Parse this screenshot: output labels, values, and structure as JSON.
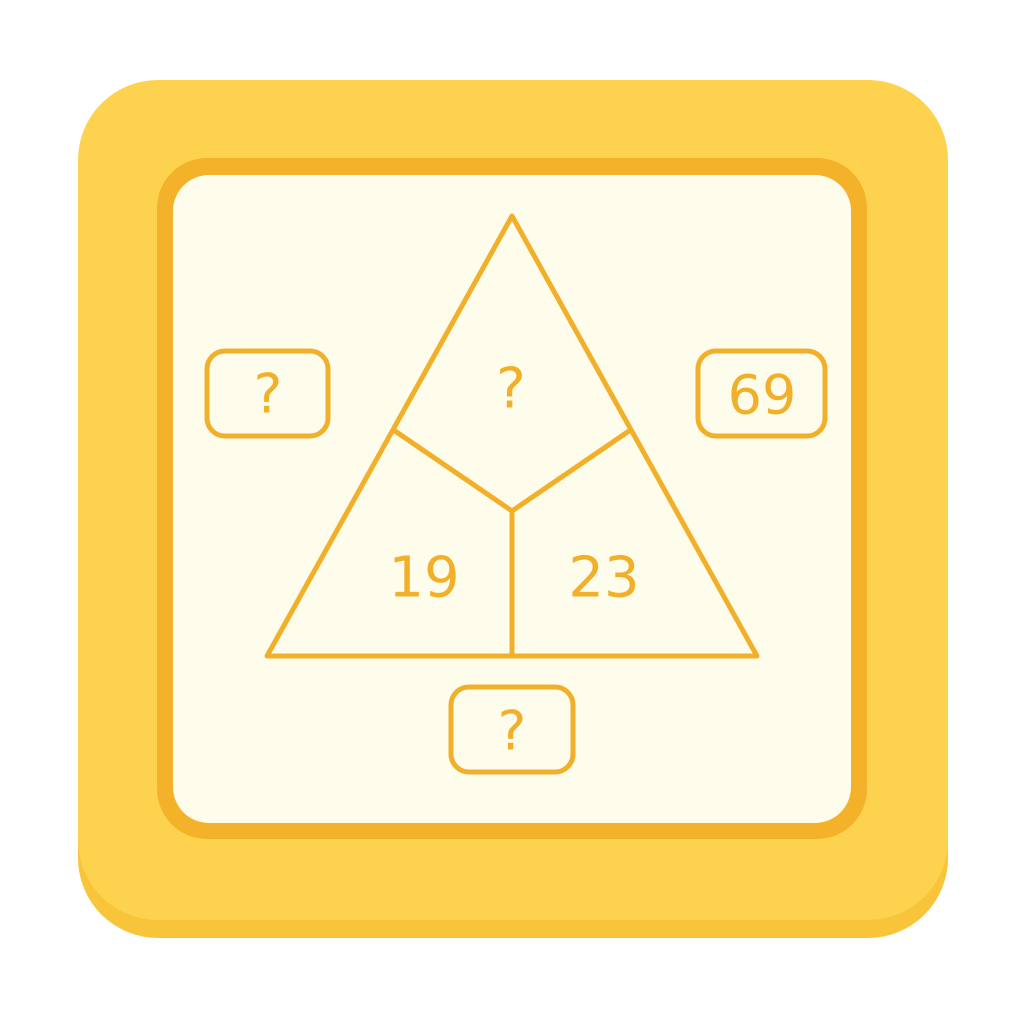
{
  "puzzle": {
    "segments": {
      "top": "?",
      "bottom_left": "19",
      "bottom_right": "23"
    },
    "outer_boxes": {
      "left": "?",
      "right": "69",
      "bottom": "?"
    }
  },
  "colors": {
    "tile": "#fdd24f",
    "tile_edge": "#f8c43a",
    "frame": "#f4b22a",
    "board": "#fefdec",
    "accent": "#f2b02a"
  }
}
